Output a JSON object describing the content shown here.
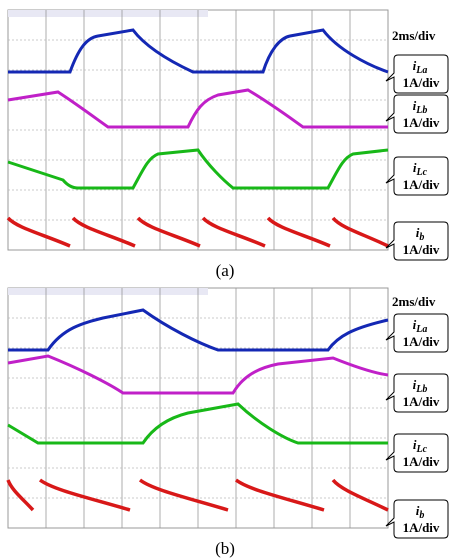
{
  "panels": [
    {
      "caption": "(a)",
      "time_scale": "2ms/div",
      "channels": [
        {
          "symbol": "i",
          "subscript": "La",
          "scale": "1A/div"
        },
        {
          "symbol": "i",
          "subscript": "Lb",
          "scale": "1A/div"
        },
        {
          "symbol": "i",
          "subscript": "Lc",
          "scale": "1A/div"
        },
        {
          "symbol": "i",
          "subscript": "b",
          "scale": "1A/div"
        }
      ]
    },
    {
      "caption": "(b)",
      "time_scale": "2ms/div",
      "channels": [
        {
          "symbol": "i",
          "subscript": "La",
          "scale": "1A/div"
        },
        {
          "symbol": "i",
          "subscript": "Lb",
          "scale": "1A/div"
        },
        {
          "symbol": "i",
          "subscript": "Lc",
          "scale": "1A/div"
        },
        {
          "symbol": "i",
          "subscript": "b",
          "scale": "1A/div"
        }
      ]
    }
  ]
}
